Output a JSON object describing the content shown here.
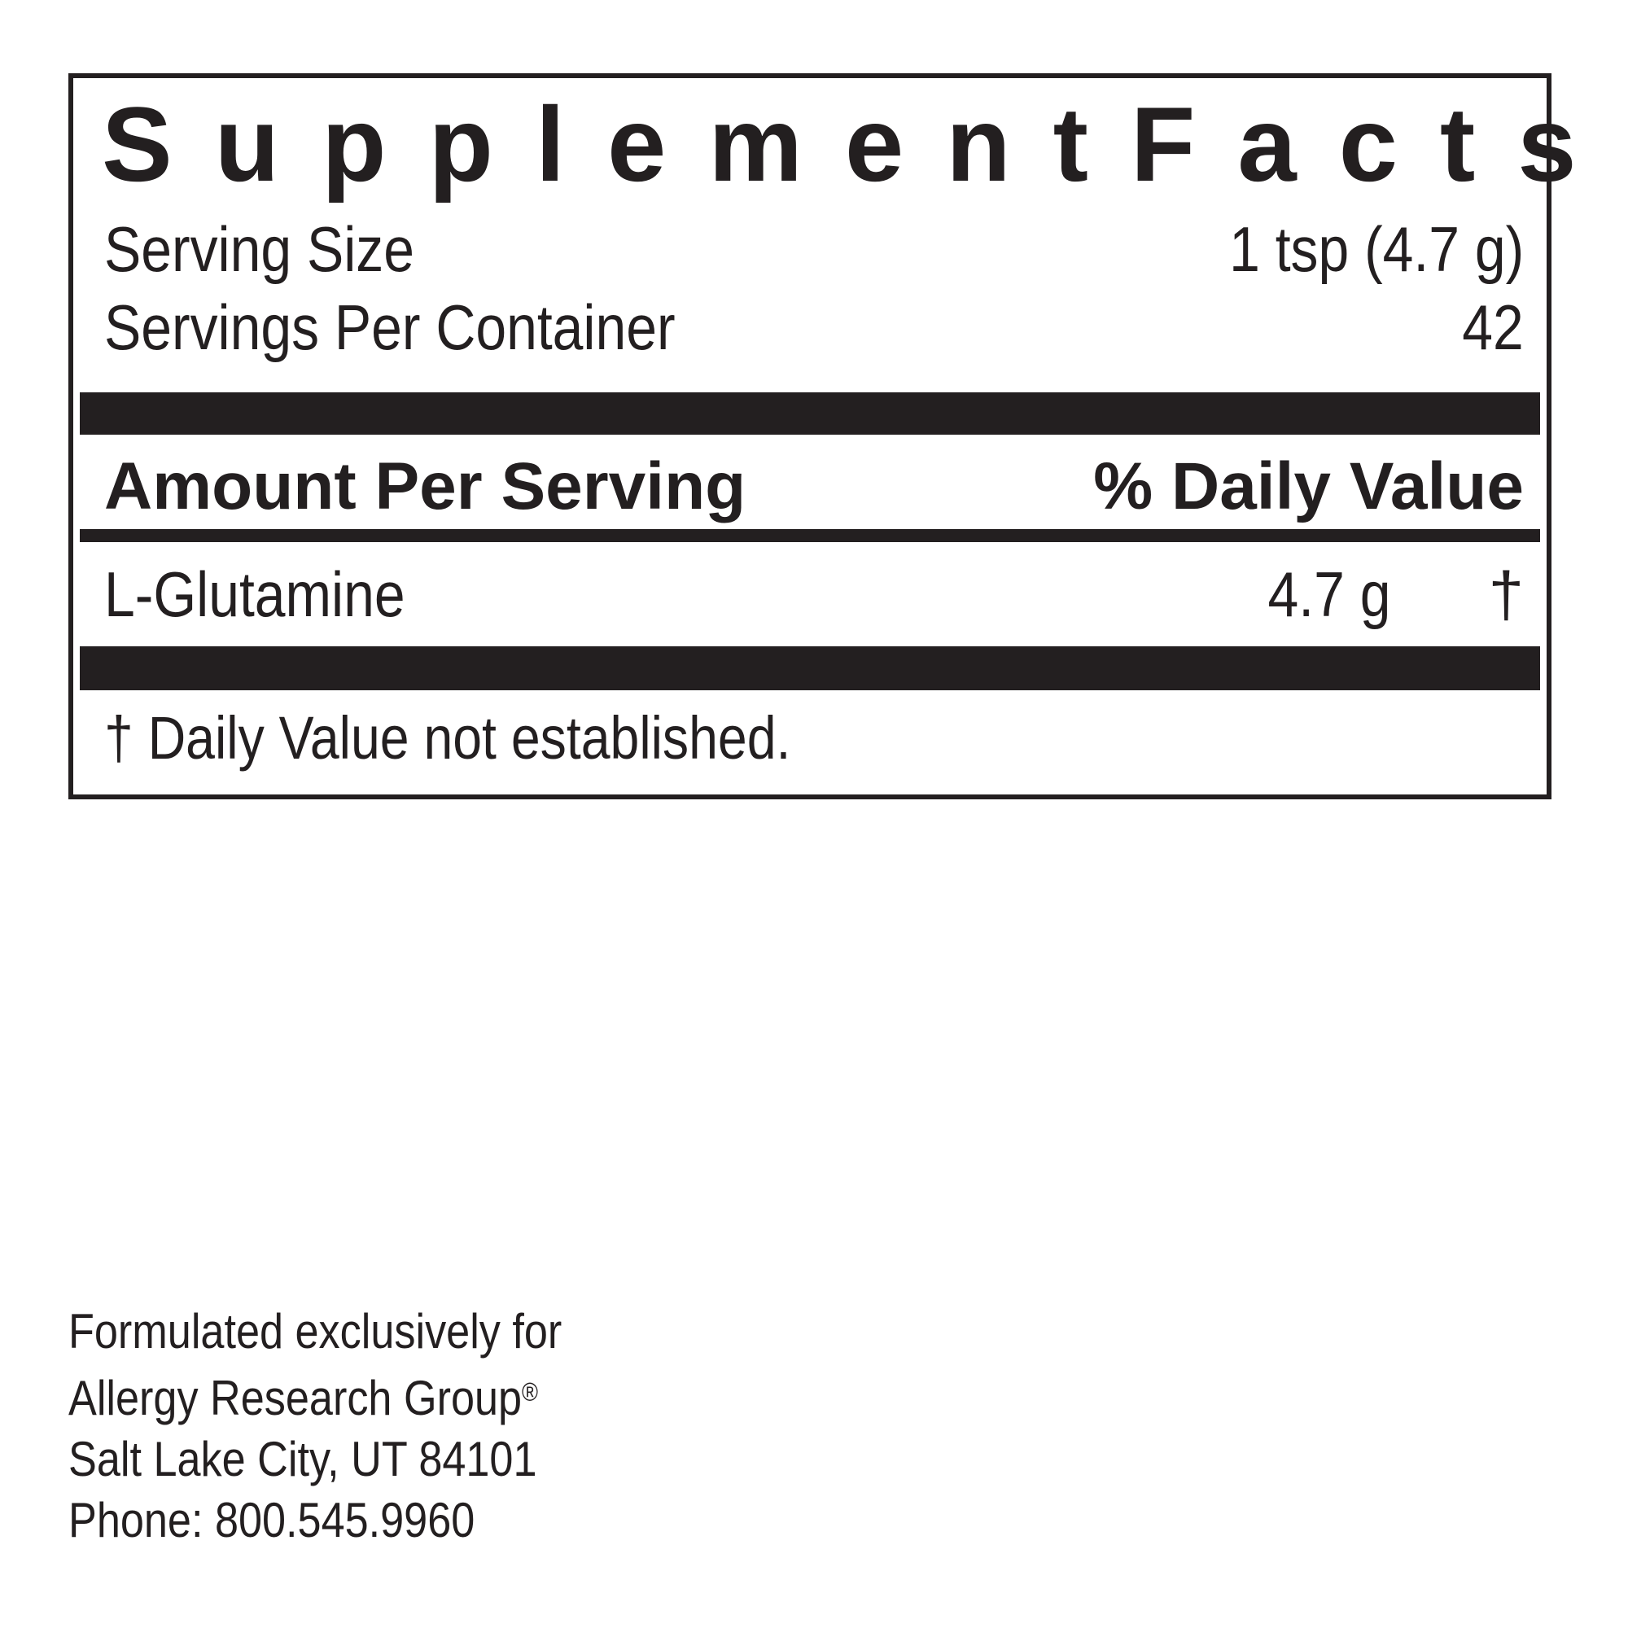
{
  "colors": {
    "ink": "#231f20",
    "paper": "#ffffff"
  },
  "panel": {
    "title": {
      "left": "Supplement",
      "right": "Facts"
    },
    "rows": [
      {
        "label": "Serving Size",
        "value": "1 tsp (4.7 g)"
      },
      {
        "label": "Servings Per Container",
        "value": "42"
      }
    ],
    "header": {
      "left": "Amount Per Serving",
      "right": "% Daily Value"
    },
    "ingredients": [
      {
        "name": "L-Glutamine",
        "amount": "4.7 g",
        "dv": "†"
      }
    ],
    "footnote": "† Daily Value not established."
  },
  "footer": {
    "lines": [
      "Formulated exclusively for",
      "Allergy Research Group",
      "Salt Lake City, UT 84101",
      "Phone: 800.545.9960"
    ],
    "registered_mark": "®"
  }
}
